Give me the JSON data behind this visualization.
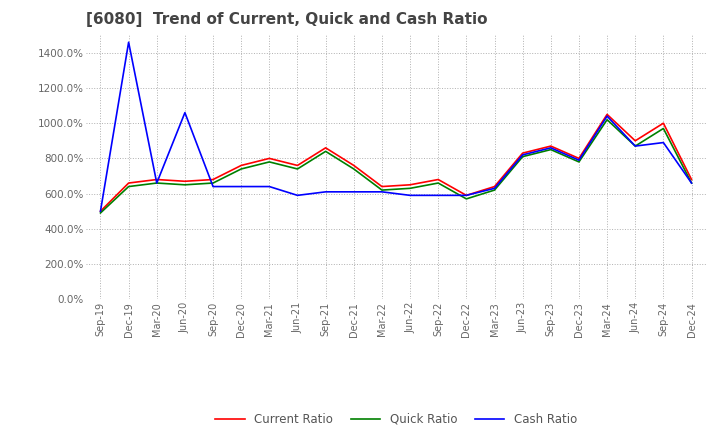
{
  "title": "[6080]  Trend of Current, Quick and Cash Ratio",
  "title_fontsize": 11,
  "background_color": "#ffffff",
  "grid_color": "#b0b0b0",
  "x_labels": [
    "Sep-19",
    "Dec-19",
    "Mar-20",
    "Jun-20",
    "Sep-20",
    "Dec-20",
    "Mar-21",
    "Jun-21",
    "Sep-21",
    "Dec-21",
    "Mar-22",
    "Jun-22",
    "Sep-22",
    "Dec-22",
    "Mar-23",
    "Jun-23",
    "Sep-23",
    "Dec-23",
    "Mar-24",
    "Jun-24",
    "Sep-24",
    "Dec-24"
  ],
  "current_ratio": [
    500,
    660,
    680,
    670,
    680,
    760,
    800,
    760,
    860,
    760,
    640,
    650,
    680,
    590,
    640,
    830,
    870,
    800,
    1050,
    900,
    1000,
    680
  ],
  "quick_ratio": [
    490,
    640,
    660,
    650,
    660,
    740,
    780,
    740,
    840,
    740,
    620,
    630,
    660,
    570,
    620,
    810,
    850,
    780,
    1020,
    870,
    970,
    660
  ],
  "cash_ratio": [
    500,
    1460,
    660,
    1060,
    640,
    640,
    640,
    590,
    610,
    610,
    610,
    590,
    590,
    590,
    630,
    820,
    860,
    790,
    1040,
    870,
    890,
    660
  ],
  "current_color": "#ff0000",
  "quick_color": "#008000",
  "cash_color": "#0000ff",
  "line_width": 1.2,
  "ylim": [
    0,
    1500
  ],
  "yticks": [
    0,
    200,
    400,
    600,
    800,
    1000,
    1200,
    1400
  ],
  "legend_labels": [
    "Current Ratio",
    "Quick Ratio",
    "Cash Ratio"
  ]
}
